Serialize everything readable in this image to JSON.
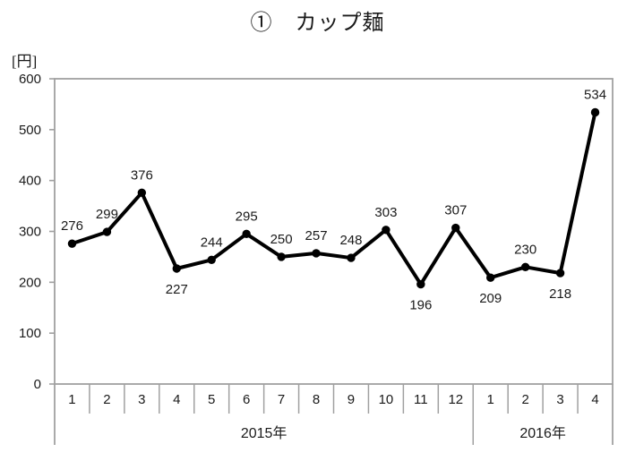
{
  "page": {
    "title": "①　カップ麺"
  },
  "chart_data": {
    "type": "line",
    "title": "①　カップ麺",
    "ylabel": "[円]",
    "xlabel": "",
    "ylim": [
      0,
      600
    ],
    "yticks": [
      0,
      100,
      200,
      300,
      400,
      500,
      600
    ],
    "categories": [
      "1",
      "2",
      "3",
      "4",
      "5",
      "6",
      "7",
      "8",
      "9",
      "10",
      "11",
      "12",
      "1",
      "2",
      "3",
      "4"
    ],
    "year_groups": [
      {
        "label": "2015年",
        "count": 12
      },
      {
        "label": "2016年",
        "count": 4
      }
    ],
    "values": [
      276,
      299,
      376,
      227,
      244,
      295,
      250,
      257,
      248,
      303,
      196,
      307,
      209,
      230,
      218,
      534
    ],
    "label_positions": [
      "above",
      "above",
      "above",
      "below",
      "above",
      "above",
      "above",
      "above",
      "above",
      "above",
      "below",
      "above",
      "below",
      "above",
      "below",
      "above"
    ],
    "grid": false,
    "legend_position": "none",
    "marker": "circle",
    "colors": {
      "line": "#000000",
      "marker": "#000000",
      "axis": "#a0a0a0",
      "text": "#1a1a1a"
    }
  }
}
